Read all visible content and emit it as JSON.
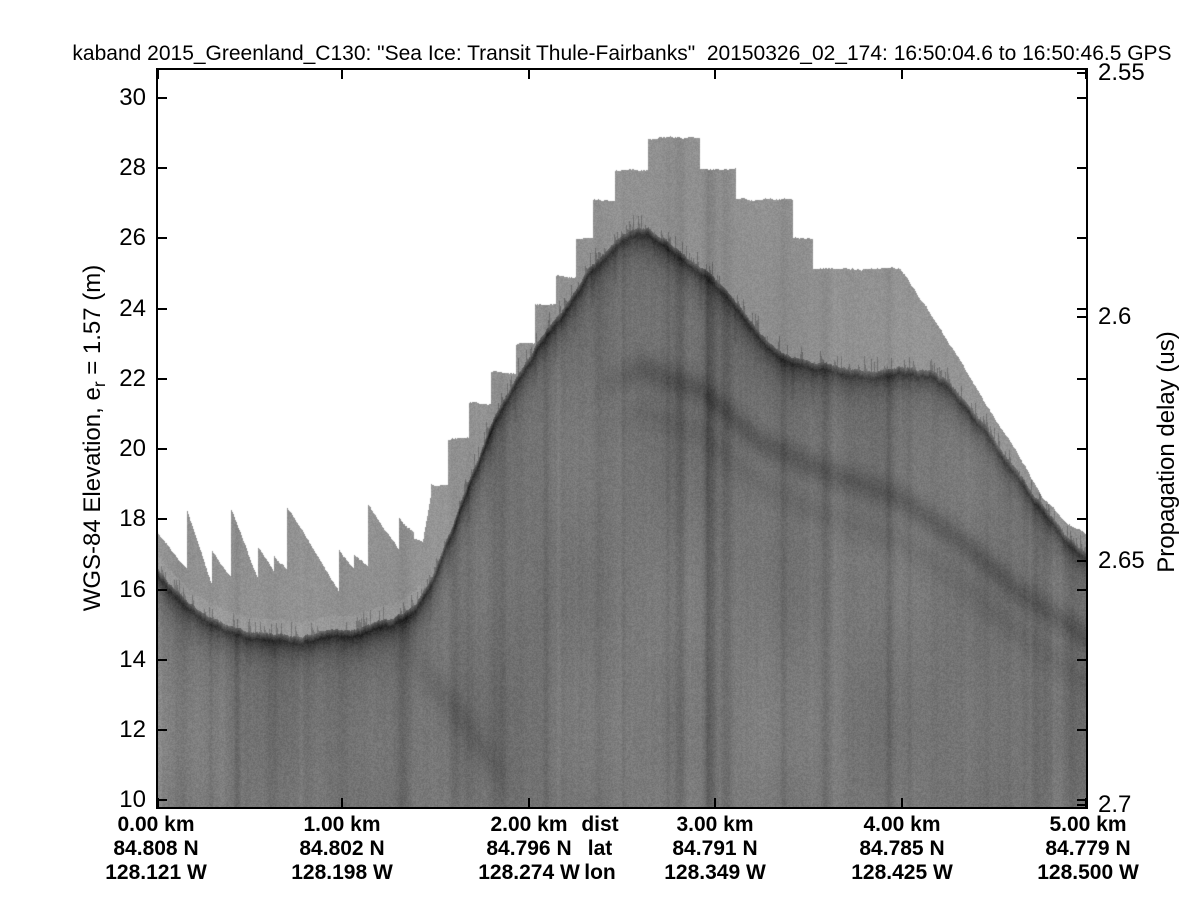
{
  "title": "kaband 2015_Greenland_C130: \"Sea Ice: Transit Thule-Fairbanks\"  20150326_02_174: 16:50:04.6 to 16:50:46.5 GPS",
  "axes": {
    "left": {
      "label_prefix": "WGS-84 Elevation, e",
      "label_sub": "r",
      "label_suffix": " = 1.57 (m)",
      "unit": "m",
      "tick_values": [
        30,
        28,
        26,
        24,
        22,
        20,
        18,
        16,
        14,
        12,
        10
      ]
    },
    "right": {
      "label": "Propagation delay (us)",
      "unit": "us",
      "tick_labels": [
        "2.55",
        "2.6",
        "2.65",
        "2.7"
      ],
      "tick_values": [
        2.55,
        2.6,
        2.65,
        2.7
      ]
    },
    "bottom": {
      "row_headers": [
        "dist",
        "lat",
        "lon"
      ],
      "ticks": [
        {
          "km": 0,
          "dist": "0.00 km",
          "lat": "84.808 N",
          "lon": "128.121 W"
        },
        {
          "km": 1,
          "dist": "1.00 km",
          "lat": "84.802 N",
          "lon": "128.198 W"
        },
        {
          "km": 2,
          "dist": "2.00 km",
          "lat": "84.796 N",
          "lon": "128.274 W"
        },
        {
          "km": 3,
          "dist": "3.00 km",
          "lat": "84.791 N",
          "lon": "128.349 W"
        },
        {
          "km": 4,
          "dist": "4.00 km",
          "lat": "84.785 N",
          "lon": "128.425 W"
        },
        {
          "km": 5,
          "dist": "5.00 km",
          "lat": "84.779 N",
          "lon": "128.500 W"
        }
      ]
    }
  },
  "colors": {
    "background": "#ffffff",
    "ink": "#000000",
    "echogram_light_band": "#919191",
    "echogram_deep": "#777777",
    "echogram_surface_echo": "#383838"
  },
  "chart_data": {
    "type": "heatmap",
    "description": "Ka-band radar altimeter echogram over sea ice (grayscale; dark = strong return)",
    "title": "kaband 2015_Greenland_C130: \"Sea Ice: Transit Thule-Fairbanks\"  20150326_02_174: 16:50:04.6 to 16:50:46.5 GPS",
    "x_axis": {
      "row_headers": [
        "dist",
        "lat",
        "lon"
      ],
      "distance_km": [
        0,
        1,
        2,
        3,
        4,
        5
      ],
      "lat_deg_N": [
        84.808,
        84.802,
        84.796,
        84.791,
        84.785,
        84.779
      ],
      "lon_deg_W": [
        128.121,
        128.198,
        128.274,
        128.349,
        128.425,
        128.5
      ]
    },
    "y_left_axis": {
      "label": "WGS-84 Elevation, e_r = 1.57 (m)",
      "ticks_m": [
        10,
        12,
        14,
        16,
        18,
        20,
        22,
        24,
        26,
        28,
        30
      ],
      "view_range_m": [
        9.74,
        30.86
      ]
    },
    "y_right_axis": {
      "label": "Propagation delay (us)",
      "ticks_us": [
        2.55,
        2.6,
        2.65,
        2.7
      ]
    },
    "grid": false,
    "legend": false,
    "surface_echo_profile": {
      "x_km": [
        0,
        0.102,
        0.236,
        0.397,
        0.558,
        0.773,
        0.933,
        1.094,
        1.255,
        1.389,
        1.47,
        1.577,
        1.684,
        1.792,
        1.899,
        2.006,
        2.114,
        2.221,
        2.328,
        2.435,
        2.543,
        2.623,
        2.73,
        2.838,
        2.945,
        3.052,
        3.16,
        3.267,
        3.374,
        3.482,
        3.616,
        3.777,
        3.938,
        4.045,
        4.152,
        4.26,
        4.367,
        4.474,
        4.581,
        4.689,
        4.785,
        4.876,
        5.0
      ],
      "elevation_m": [
        16.6,
        15.9,
        15.3,
        14.85,
        14.7,
        14.65,
        14.75,
        14.9,
        15.15,
        15.5,
        16.2,
        17.6,
        19.2,
        20.6,
        21.7,
        22.6,
        23.5,
        24.3,
        25.1,
        25.7,
        26.25,
        26.3,
        25.9,
        25.5,
        25.1,
        24.5,
        23.8,
        23.1,
        22.65,
        22.45,
        22.3,
        22.2,
        22.25,
        22.3,
        22.2,
        21.8,
        21.1,
        20.4,
        19.6,
        18.8,
        18.1,
        17.5,
        16.9
      ]
    },
    "record_window_top": {
      "teeth": [
        [
          0.0,
          17.65,
          0.165,
          16.55
        ],
        [
          0.165,
          18.25,
          0.3,
          16.1
        ],
        [
          0.3,
          17.1,
          0.4,
          16.35
        ],
        [
          0.4,
          18.3,
          0.545,
          16.3
        ],
        [
          0.545,
          17.2,
          0.63,
          16.55
        ],
        [
          0.63,
          17.0,
          0.7,
          16.6
        ],
        [
          0.7,
          18.35,
          0.98,
          15.95
        ],
        [
          0.98,
          17.15,
          1.06,
          16.6
        ],
        [
          1.06,
          17.0,
          1.135,
          16.65
        ],
        [
          1.135,
          18.4,
          1.3,
          17.1
        ],
        [
          1.3,
          18.0,
          1.38,
          17.6
        ],
        [
          1.38,
          17.45,
          1.43,
          17.4
        ],
        [
          1.43,
          17.4,
          1.47,
          18.6
        ]
      ],
      "steps": [
        [
          1.47,
          1.566,
          19.0
        ],
        [
          1.566,
          1.674,
          20.3
        ],
        [
          1.674,
          1.792,
          21.3
        ],
        [
          1.792,
          1.926,
          22.2
        ],
        [
          1.926,
          2.033,
          23.0
        ],
        [
          2.033,
          2.141,
          24.1
        ],
        [
          2.141,
          2.248,
          24.9
        ],
        [
          2.248,
          2.339,
          26.0
        ],
        [
          2.339,
          2.462,
          27.1
        ],
        [
          2.462,
          2.639,
          27.95
        ],
        [
          2.639,
          2.918,
          28.86
        ],
        [
          2.918,
          3.106,
          27.95
        ],
        [
          3.106,
          3.412,
          27.1
        ],
        [
          3.412,
          3.519,
          26.0
        ],
        [
          3.519,
          3.991,
          25.15
        ]
      ],
      "descent_points": [
        [
          3.991,
          25.15
        ],
        [
          4.136,
          24.0
        ],
        [
          4.286,
          22.7
        ],
        [
          4.447,
          21.3
        ],
        [
          4.608,
          20.0
        ],
        [
          4.758,
          18.6
        ],
        [
          4.876,
          17.95
        ],
        [
          5.0,
          17.55
        ]
      ]
    },
    "subsurface_layer": {
      "x_km": [
        2.328,
        2.596,
        2.918,
        3.24,
        3.616,
        3.991,
        4.313,
        4.635,
        5.0
      ],
      "elevation_m": [
        21.6,
        22.3,
        21.7,
        20.2,
        19.3,
        18.6,
        17.4,
        15.9,
        14.6
      ],
      "fade_in_km": 2.328
    },
    "deep_band": {
      "x_km": [
        1.309,
        1.684,
        1.952
      ],
      "elevation_m": [
        14.5,
        12.0,
        10.0
      ]
    }
  }
}
